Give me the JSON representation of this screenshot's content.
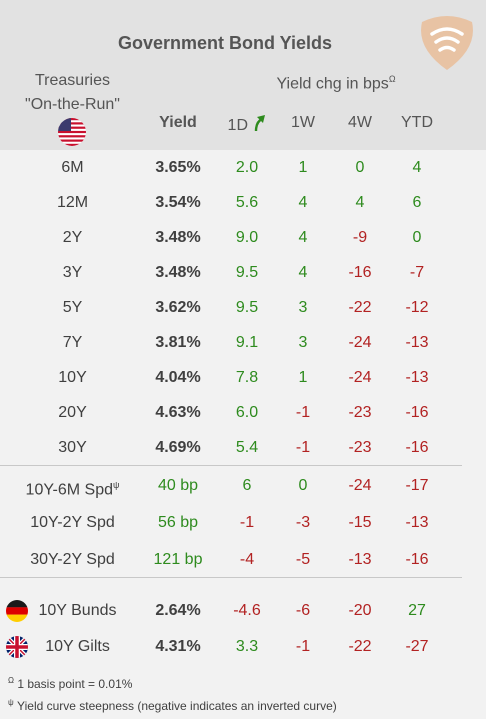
{
  "title": "Government Bond Yields",
  "treasuries_line1": "Treasuries",
  "treasuries_line2": "\"On-the-Run\"",
  "yield_chg_label": "Yield chg in bps",
  "yield_chg_sup": "Ω",
  "col_yield": "Yield",
  "col_1d": "1D",
  "col_1w": "1W",
  "col_4w": "4W",
  "col_ytd": "YTD",
  "colors": {
    "positive": "#2e8b1e",
    "negative": "#b22222",
    "header_bg": "#e2e2e2",
    "body_bg": "#f2f2f2"
  },
  "rows": [
    {
      "label": "6M",
      "yield": "3.65%",
      "d1": "2.0",
      "w1": "1",
      "w4": "0",
      "ytd": "4"
    },
    {
      "label": "12M",
      "yield": "3.54%",
      "d1": "5.6",
      "w1": "4",
      "w4": "4",
      "ytd": "6"
    },
    {
      "label": "2Y",
      "yield": "3.48%",
      "d1": "9.0",
      "w1": "4",
      "w4": "-9",
      "ytd": "0"
    },
    {
      "label": "3Y",
      "yield": "3.48%",
      "d1": "9.5",
      "w1": "4",
      "w4": "-16",
      "ytd": "-7"
    },
    {
      "label": "5Y",
      "yield": "3.62%",
      "d1": "9.5",
      "w1": "3",
      "w4": "-22",
      "ytd": "-12"
    },
    {
      "label": "7Y",
      "yield": "3.81%",
      "d1": "9.1",
      "w1": "3",
      "w4": "-24",
      "ytd": "-13"
    },
    {
      "label": "10Y",
      "yield": "4.04%",
      "d1": "7.8",
      "w1": "1",
      "w4": "-24",
      "ytd": "-13"
    },
    {
      "label": "20Y",
      "yield": "4.63%",
      "d1": "6.0",
      "w1": "-1",
      "w4": "-23",
      "ytd": "-16"
    },
    {
      "label": "30Y",
      "yield": "4.69%",
      "d1": "5.4",
      "w1": "-1",
      "w4": "-23",
      "ytd": "-16"
    }
  ],
  "spreads": [
    {
      "label": "10Y-6M Spd",
      "sup": "ψ",
      "yield": "40 bp",
      "d1": "6",
      "w1": "0",
      "w4": "-24",
      "ytd": "-17"
    },
    {
      "label": "10Y-2Y Spd",
      "sup": "",
      "yield": "56 bp",
      "d1": "-1",
      "w1": "-3",
      "w4": "-15",
      "ytd": "-13"
    },
    {
      "label": "30Y-2Y Spd",
      "sup": "",
      "yield": "121 bp",
      "d1": "-4",
      "w1": "-5",
      "w4": "-13",
      "ytd": "-16"
    }
  ],
  "intl": [
    {
      "label": "10Y Bunds",
      "flag": "germany-flag",
      "yield": "2.64%",
      "d1": "-4.6",
      "w1": "-6",
      "w4": "-20",
      "ytd": "27"
    },
    {
      "label": "10Y Gilts",
      "flag": "uk-flag",
      "yield": "4.31%",
      "d1": "3.3",
      "w1": "-1",
      "w4": "-22",
      "ytd": "-27"
    }
  ],
  "footnote1_sym": "Ω",
  "footnote1": "1 basis point = 0.01%",
  "footnote2_sym": "ψ",
  "footnote2": "Yield curve steepness (negative indicates an inverted curve)",
  "chart_data": {
    "type": "table",
    "title": "Government Bond Yields",
    "columns": [
      "",
      "Yield",
      "1D",
      "1W",
      "4W",
      "YTD"
    ],
    "treasuries": [
      [
        "6M",
        3.65,
        2.0,
        1,
        0,
        4
      ],
      [
        "12M",
        3.54,
        5.6,
        4,
        4,
        6
      ],
      [
        "2Y",
        3.48,
        9.0,
        4,
        -9,
        0
      ],
      [
        "3Y",
        3.48,
        9.5,
        4,
        -16,
        -7
      ],
      [
        "5Y",
        3.62,
        9.5,
        3,
        -22,
        -12
      ],
      [
        "7Y",
        3.81,
        9.1,
        3,
        -24,
        -13
      ],
      [
        "10Y",
        4.04,
        7.8,
        1,
        -24,
        -13
      ],
      [
        "20Y",
        4.63,
        6.0,
        -1,
        -23,
        -16
      ],
      [
        "30Y",
        4.69,
        5.4,
        -1,
        -23,
        -16
      ]
    ],
    "spreads_bp": [
      [
        "10Y-6M Spd",
        40,
        6,
        0,
        -24,
        -17
      ],
      [
        "10Y-2Y Spd",
        56,
        -1,
        -3,
        -15,
        -13
      ],
      [
        "30Y-2Y Spd",
        121,
        -4,
        -5,
        -13,
        -16
      ]
    ],
    "international": [
      [
        "10Y Bunds",
        2.64,
        -4.6,
        -6,
        -20,
        27
      ],
      [
        "10Y Gilts",
        4.31,
        3.3,
        -1,
        -22,
        -27
      ]
    ]
  }
}
